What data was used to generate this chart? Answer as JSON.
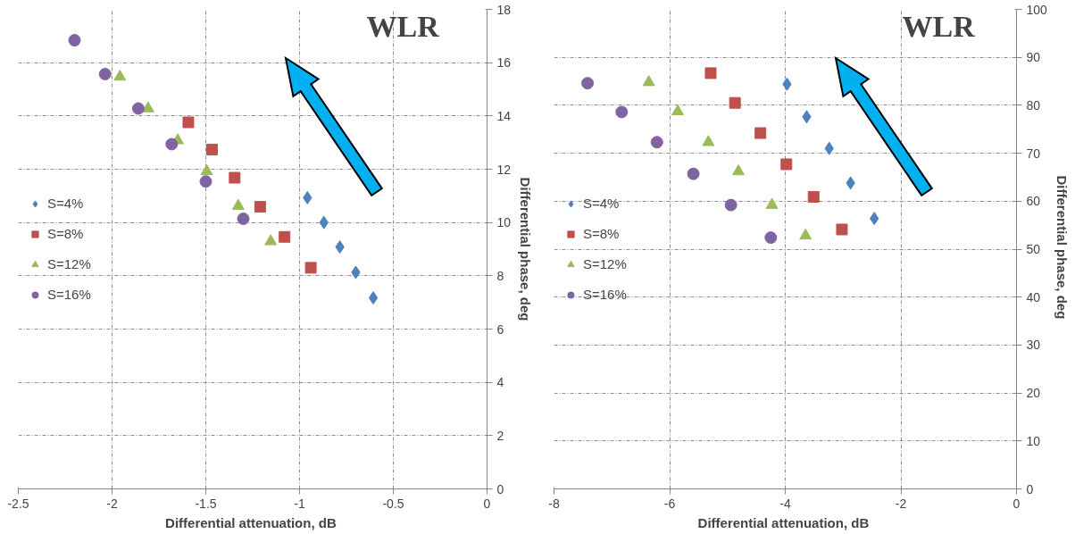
{
  "chart_data": [
    {
      "type": "scatter",
      "xlabel": "Differential  attenuation, dB",
      "ylabel": "Differential phase, deg",
      "annotations": [
        "WLR"
      ],
      "xlim": [
        -2.5,
        0
      ],
      "ylim": [
        0,
        18
      ],
      "xticks": [
        -2.5,
        -2,
        -1.5,
        -1,
        -0.5,
        0
      ],
      "yticks": [
        0,
        2,
        4,
        6,
        8,
        10,
        12,
        14,
        16,
        18
      ],
      "grid": true,
      "legend": "left",
      "series": [
        {
          "name": "S=4%",
          "color": "#4f81bd",
          "marker": "diamond",
          "x": [
            -0.958,
            -0.87,
            -0.785,
            -0.7,
            -0.607
          ],
          "values": [
            10.93,
            10.0,
            9.08,
            8.13,
            7.17
          ]
        },
        {
          "name": "S=8%",
          "color": "#c0504d",
          "marker": "square",
          "x": [
            -1.593,
            -1.467,
            -1.346,
            -1.21,
            -1.08,
            -0.94
          ],
          "values": [
            13.76,
            12.74,
            11.68,
            10.59,
            9.46,
            8.3
          ]
        },
        {
          "name": "S=12%",
          "color": "#9bbb59",
          "marker": "triangle",
          "x": [
            -1.958,
            -1.808,
            -1.65,
            -1.495,
            -1.327,
            -1.154
          ],
          "values": [
            15.47,
            14.28,
            13.08,
            11.92,
            10.62,
            9.29
          ]
        },
        {
          "name": "S=16%",
          "color": "#8064a2",
          "marker": "circle",
          "x": [
            -2.2,
            -2.037,
            -1.86,
            -1.682,
            -1.5,
            -1.3
          ],
          "values": [
            16.84,
            15.57,
            14.28,
            12.94,
            11.54,
            10.14
          ]
        }
      ]
    },
    {
      "type": "scatter",
      "xlabel": "Differential  attenuation, dB",
      "ylabel": "Differential  phase, deg",
      "annotations": [
        "WLR"
      ],
      "xlim": [
        -8,
        0
      ],
      "ylim": [
        0,
        100
      ],
      "xticks": [
        -8,
        -6,
        -4,
        -2,
        0
      ],
      "yticks": [
        0,
        10,
        20,
        30,
        40,
        50,
        60,
        70,
        80,
        90,
        100
      ],
      "grid": true,
      "legend": "left",
      "series": [
        {
          "name": "S=4%",
          "color": "#4f81bd",
          "marker": "diamond",
          "x": [
            -3.97,
            -3.63,
            -3.24,
            -2.87,
            -2.46
          ],
          "values": [
            84.4,
            77.6,
            71.0,
            63.8,
            56.4
          ]
        },
        {
          "name": "S=8%",
          "color": "#c0504d",
          "marker": "square",
          "x": [
            -5.29,
            -4.87,
            -4.43,
            -3.98,
            -3.51,
            -3.02
          ],
          "values": [
            86.7,
            80.5,
            74.2,
            67.7,
            60.9,
            54.1
          ]
        },
        {
          "name": "S=12%",
          "color": "#9bbb59",
          "marker": "triangle",
          "x": [
            -6.36,
            -5.86,
            -5.33,
            -4.81,
            -4.23,
            -3.65
          ],
          "values": [
            84.8,
            78.7,
            72.3,
            66.2,
            59.2,
            52.8
          ]
        },
        {
          "name": "S=16%",
          "color": "#8064a2",
          "marker": "circle",
          "x": [
            -7.42,
            -6.83,
            -6.22,
            -5.59,
            -4.94,
            -4.25
          ],
          "values": [
            84.6,
            78.6,
            72.3,
            65.7,
            59.2,
            52.4
          ]
        }
      ]
    }
  ]
}
